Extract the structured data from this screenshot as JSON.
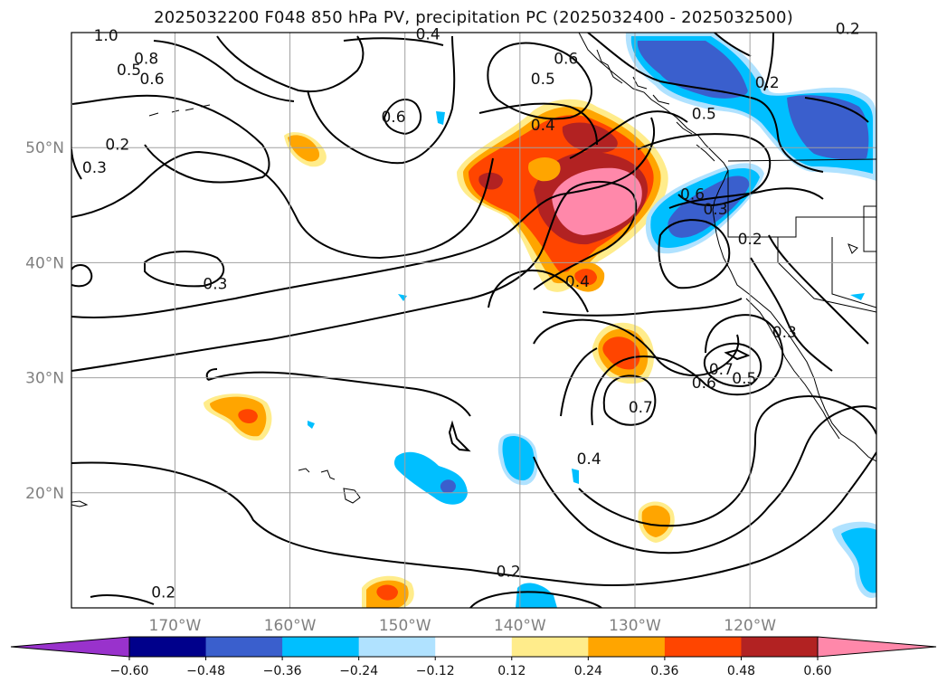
{
  "title": "2025032200 F048 850 hPa PV, precipitation PC (2025032400 - 2025032500)",
  "map": {
    "lat_ticks": [
      {
        "value": 50,
        "label": "50°N"
      },
      {
        "value": 40,
        "label": "40°N"
      },
      {
        "value": 30,
        "label": "30°N"
      },
      {
        "value": 20,
        "label": "20°N"
      }
    ],
    "lon_ticks": [
      {
        "value": -170,
        "label": "170°W"
      },
      {
        "value": -160,
        "label": "160°W"
      },
      {
        "value": -150,
        "label": "150°W"
      },
      {
        "value": -140,
        "label": "140°W"
      },
      {
        "value": -130,
        "label": "130°W"
      },
      {
        "value": -120,
        "label": "120°W"
      }
    ],
    "extent": {
      "lon_min": -179,
      "lon_max": -109,
      "lat_min": 10,
      "lat_max": 60
    },
    "grid": true
  },
  "contour_labels": [
    {
      "text": "1.0",
      "lon": -176,
      "lat": 59.3
    },
    {
      "text": "0.8",
      "lon": -172.5,
      "lat": 57.3
    },
    {
      "text": "0.5",
      "lon": -174,
      "lat": 56.3
    },
    {
      "text": "0.6",
      "lon": -172,
      "lat": 55.5
    },
    {
      "text": "0.4",
      "lon": -148,
      "lat": 59.4
    },
    {
      "text": "0.6",
      "lon": -151,
      "lat": 52.2
    },
    {
      "text": "0.2",
      "lon": -175,
      "lat": 49.8
    },
    {
      "text": "0.3",
      "lon": -177,
      "lat": 47.8
    },
    {
      "text": "0.6",
      "lon": -136,
      "lat": 57.3
    },
    {
      "text": "0.5",
      "lon": -138,
      "lat": 55.5
    },
    {
      "text": "0.4",
      "lon": -138,
      "lat": 51.5
    },
    {
      "text": "0.5",
      "lon": -124,
      "lat": 52.5
    },
    {
      "text": "0.6",
      "lon": -125,
      "lat": 45.5
    },
    {
      "text": "0.3",
      "lon": -123,
      "lat": 44.2
    },
    {
      "text": "0.2",
      "lon": -120,
      "lat": 41.6
    },
    {
      "text": "0.2",
      "lon": -118.5,
      "lat": 55.2
    },
    {
      "text": "0.2",
      "lon": -111.5,
      "lat": 59.9
    },
    {
      "text": "0.3",
      "lon": -166.5,
      "lat": 37.7
    },
    {
      "text": "0.4",
      "lon": -135,
      "lat": 37.9
    },
    {
      "text": "0.7",
      "lon": -122.5,
      "lat": 30.3
    },
    {
      "text": "0.6",
      "lon": -124,
      "lat": 29.1
    },
    {
      "text": "0.5",
      "lon": -120.5,
      "lat": 29.5
    },
    {
      "text": "0.3",
      "lon": -117,
      "lat": 33.5
    },
    {
      "text": "0.7",
      "lon": -129.5,
      "lat": 27.0
    },
    {
      "text": "0.4",
      "lon": -134,
      "lat": 22.5
    },
    {
      "text": "0.2",
      "lon": -141,
      "lat": 12.7
    },
    {
      "text": "0.2",
      "lon": -171,
      "lat": 10.9
    }
  ],
  "colorbar": {
    "ticks": [
      "−0.60",
      "−0.48",
      "−0.36",
      "−0.24",
      "−0.12",
      "0.12",
      "0.24",
      "0.36",
      "0.48",
      "0.60"
    ],
    "colors": [
      "#9932cc",
      "#00008b",
      "#3a5fcd",
      "#00bfff",
      "#b0e2ff",
      "#ffffff",
      "#ffec8b",
      "#ffa500",
      "#ff4500",
      "#b22222",
      "#ff88aa"
    ]
  }
}
